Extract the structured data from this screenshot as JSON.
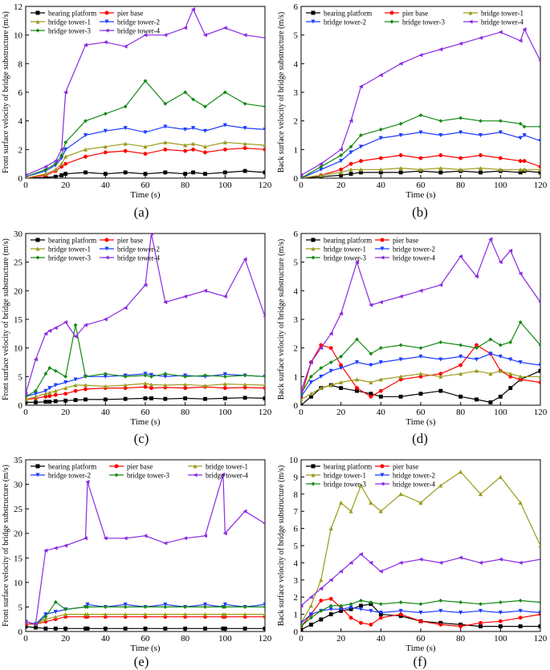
{
  "figure": {
    "captions": [
      "(a)",
      "(b)",
      "(c)",
      "(d)",
      "(e)",
      "(f)"
    ]
  },
  "series_styles": [
    {
      "name": "bearing platform",
      "color": "#000000",
      "marker": "square"
    },
    {
      "name": "pier base",
      "color": "#ff0000",
      "marker": "circle"
    },
    {
      "name": "bridge tower-1",
      "color": "#9b9b1c",
      "marker": "triangle-up"
    },
    {
      "name": "bridge tower-2",
      "color": "#1f3cff",
      "marker": "triangle-down"
    },
    {
      "name": "bridge tower-3",
      "color": "#168a16",
      "marker": "diamond"
    },
    {
      "name": "bridge tower-4",
      "color": "#8a2be2",
      "marker": "triangle-left"
    }
  ],
  "chart_data": [
    {
      "id": "a",
      "type": "line",
      "xlabel": "Time (s)",
      "ylabel": "Front surface velocity of bridge substructure (m/s)",
      "xlim": [
        0,
        120
      ],
      "ylim": [
        0,
        12
      ],
      "xticks": [
        0,
        20,
        40,
        60,
        80,
        100,
        120
      ],
      "yticks": [
        0,
        2,
        4,
        6,
        8,
        10,
        12
      ],
      "legend_order": [
        "bearing platform",
        "pier base",
        "bridge tower-1",
        "bridge tower-2",
        "bridge tower-3",
        "bridge tower-4"
      ],
      "legend_cols": 2,
      "x": [
        0,
        10,
        15,
        18,
        20,
        30,
        40,
        50,
        60,
        70,
        80,
        84,
        90,
        100,
        110,
        120
      ],
      "series": [
        {
          "name": "bearing platform",
          "values": [
            0,
            0.05,
            0.1,
            0.2,
            0.3,
            0.4,
            0.3,
            0.4,
            0.3,
            0.4,
            0.3,
            0.4,
            0.3,
            0.4,
            0.5,
            0.4
          ]
        },
        {
          "name": "pier base",
          "values": [
            0,
            0.2,
            0.5,
            0.8,
            1.0,
            1.5,
            1.8,
            1.9,
            1.7,
            2.0,
            1.9,
            2.0,
            1.8,
            2.0,
            2.1,
            2.0
          ]
        },
        {
          "name": "bridge tower-1",
          "values": [
            0,
            0.3,
            0.6,
            1.0,
            1.5,
            2.0,
            2.2,
            2.4,
            2.2,
            2.5,
            2.3,
            2.4,
            2.2,
            2.5,
            2.4,
            2.3
          ]
        },
        {
          "name": "bridge tower-2",
          "values": [
            0.1,
            0.5,
            0.9,
            1.4,
            2.0,
            3.0,
            3.3,
            3.5,
            3.2,
            3.6,
            3.4,
            3.5,
            3.3,
            3.7,
            3.5,
            3.4
          ]
        },
        {
          "name": "bridge tower-3",
          "values": [
            0.1,
            0.6,
            1.0,
            1.6,
            2.5,
            4.0,
            4.5,
            5.0,
            6.8,
            5.2,
            6.0,
            5.5,
            5.0,
            6.0,
            5.2,
            5.0
          ]
        },
        {
          "name": "bridge tower-4",
          "values": [
            0.2,
            0.8,
            1.2,
            2.0,
            6.0,
            9.3,
            9.5,
            9.2,
            10.0,
            10.0,
            10.5,
            11.8,
            10.0,
            10.5,
            10.0,
            9.8
          ]
        }
      ]
    },
    {
      "id": "b",
      "type": "line",
      "xlabel": "Time (s)",
      "ylabel": "Back surface velocity of bridge substructure (m/s)",
      "xlim": [
        0,
        120
      ],
      "ylim": [
        0,
        6
      ],
      "xticks": [
        0,
        20,
        40,
        60,
        80,
        100,
        120
      ],
      "yticks": [
        0,
        1,
        2,
        3,
        4,
        5,
        6
      ],
      "legend_order": [
        "bearing platform",
        "pier base",
        "bridge tower-1",
        "bridge tower-2",
        "bridge tower-3",
        "bridge tower-4"
      ],
      "legend_cols": 3,
      "x": [
        0,
        10,
        20,
        25,
        30,
        40,
        50,
        60,
        70,
        80,
        90,
        100,
        110,
        112,
        120
      ],
      "series": [
        {
          "name": "bearing platform",
          "values": [
            0,
            0.05,
            0.1,
            0.15,
            0.2,
            0.2,
            0.2,
            0.25,
            0.2,
            0.25,
            0.2,
            0.25,
            0.2,
            0.25,
            0.2
          ]
        },
        {
          "name": "pier base",
          "values": [
            0,
            0.1,
            0.3,
            0.5,
            0.6,
            0.7,
            0.8,
            0.7,
            0.8,
            0.7,
            0.8,
            0.7,
            0.6,
            0.6,
            0.4
          ]
        },
        {
          "name": "bridge tower-1",
          "values": [
            0,
            0.1,
            0.2,
            0.3,
            0.3,
            0.3,
            0.35,
            0.3,
            0.35,
            0.3,
            0.35,
            0.3,
            0.3,
            0.3,
            0.3
          ]
        },
        {
          "name": "bridge tower-2",
          "values": [
            0,
            0.3,
            0.6,
            0.9,
            1.1,
            1.4,
            1.5,
            1.6,
            1.5,
            1.6,
            1.5,
            1.6,
            1.4,
            1.5,
            1.3
          ]
        },
        {
          "name": "bridge tower-3",
          "values": [
            0,
            0.4,
            0.8,
            1.1,
            1.5,
            1.7,
            1.9,
            2.2,
            2.0,
            2.1,
            2.0,
            2.0,
            1.9,
            1.8,
            1.8
          ]
        },
        {
          "name": "bridge tower-4",
          "values": [
            0.1,
            0.5,
            1.0,
            2.0,
            3.2,
            3.6,
            4.0,
            4.3,
            4.5,
            4.7,
            4.9,
            5.1,
            4.8,
            5.2,
            4.1
          ]
        }
      ]
    },
    {
      "id": "c",
      "type": "line",
      "xlabel": "Time (s)",
      "ylabel": "Front surface velocity of bridge substructure (m/s)",
      "xlim": [
        0,
        120
      ],
      "ylim": [
        0,
        30
      ],
      "xticks": [
        0,
        20,
        40,
        60,
        80,
        100,
        120
      ],
      "yticks": [
        0,
        5,
        10,
        15,
        20,
        25,
        30
      ],
      "legend_order": [
        "bearing platform",
        "pier base",
        "bridge tower-1",
        "bridge tower-2",
        "bridge tower-3",
        "bridge tower-4"
      ],
      "legend_cols": 2,
      "x": [
        0,
        5,
        10,
        12,
        15,
        20,
        25,
        30,
        40,
        50,
        60,
        63,
        70,
        80,
        90,
        100,
        110,
        120
      ],
      "series": [
        {
          "name": "bearing platform",
          "values": [
            0.5,
            0.5,
            0.6,
            0.6,
            0.7,
            0.8,
            0.9,
            1.0,
            1.0,
            1.1,
            1.2,
            1.2,
            1.1,
            1.2,
            1.1,
            1.2,
            1.3,
            1.2
          ]
        },
        {
          "name": "pier base",
          "values": [
            1.0,
            1.2,
            1.5,
            1.6,
            1.8,
            2.0,
            2.5,
            2.8,
            3.0,
            3.0,
            3.2,
            3.0,
            3.1,
            3.0,
            3.2,
            3.0,
            3.1,
            3.0
          ]
        },
        {
          "name": "bridge tower-1",
          "values": [
            1.0,
            1.5,
            2.0,
            2.2,
            2.5,
            3.0,
            3.5,
            3.5,
            3.3,
            3.5,
            3.8,
            3.6,
            3.5,
            3.6,
            3.4,
            3.7,
            3.6,
            3.5
          ]
        },
        {
          "name": "bridge tower-2",
          "values": [
            1.5,
            2.0,
            2.5,
            3.0,
            3.5,
            4.0,
            4.5,
            5.0,
            5.0,
            5.2,
            5.5,
            5.3,
            5.0,
            5.2,
            5.0,
            5.4,
            5.2,
            5.0
          ]
        },
        {
          "name": "bridge tower-3",
          "values": [
            1.5,
            2.5,
            5.5,
            6.5,
            6.0,
            5.0,
            14.0,
            5.0,
            5.5,
            5.0,
            5.2,
            5.0,
            5.5,
            5.0,
            5.2,
            5.0,
            5.2,
            5.0
          ]
        },
        {
          "name": "bridge tower-4",
          "values": [
            2.0,
            8.0,
            12.5,
            13.0,
            13.5,
            14.5,
            12.0,
            14.0,
            15.0,
            17.0,
            21.0,
            30.0,
            18.0,
            19.0,
            20.0,
            19.0,
            25.5,
            15.5
          ]
        }
      ]
    },
    {
      "id": "d",
      "type": "line",
      "xlabel": "Time (s)",
      "ylabel": "Back surface velocity of bridge substructure (m/s)",
      "xlim": [
        0,
        120
      ],
      "ylim": [
        0,
        6
      ],
      "xticks": [
        0,
        20,
        40,
        60,
        80,
        100,
        120
      ],
      "yticks": [
        0,
        1,
        2,
        3,
        4,
        5,
        6
      ],
      "legend_order": [
        "bearing platform",
        "pier base",
        "bridge tower-1",
        "bridge tower-2",
        "bridge tower-3",
        "bridge tower-4"
      ],
      "legend_cols": 2,
      "x": [
        0,
        5,
        10,
        15,
        20,
        28,
        35,
        40,
        50,
        60,
        70,
        80,
        88,
        95,
        100,
        105,
        110,
        120
      ],
      "series": [
        {
          "name": "bearing platform",
          "values": [
            0,
            0.3,
            0.6,
            0.7,
            0.6,
            0.5,
            0.4,
            0.3,
            0.3,
            0.4,
            0.5,
            0.3,
            0.2,
            0.1,
            0.3,
            0.6,
            0.9,
            1.2
          ]
        },
        {
          "name": "pier base",
          "values": [
            0.3,
            1.5,
            2.1,
            2.0,
            1.4,
            0.6,
            0.3,
            0.5,
            0.9,
            1.0,
            1.1,
            1.4,
            2.1,
            1.8,
            1.2,
            1.0,
            0.9,
            0.8
          ]
        },
        {
          "name": "bridge tower-1",
          "values": [
            0.2,
            0.4,
            0.6,
            0.7,
            0.8,
            0.9,
            0.8,
            0.9,
            1.0,
            1.1,
            1.0,
            1.1,
            1.2,
            1.1,
            1.2,
            1.1,
            1.0,
            1.0
          ]
        },
        {
          "name": "bridge tower-2",
          "values": [
            0.3,
            0.8,
            1.0,
            1.2,
            1.3,
            1.5,
            1.4,
            1.5,
            1.6,
            1.7,
            1.6,
            1.7,
            1.6,
            1.8,
            1.7,
            1.6,
            1.5,
            1.4
          ]
        },
        {
          "name": "bridge tower-3",
          "values": [
            0.4,
            1.0,
            1.3,
            1.5,
            1.7,
            2.3,
            1.8,
            2.0,
            2.1,
            2.0,
            2.2,
            2.1,
            2.0,
            2.3,
            2.1,
            2.2,
            2.9,
            2.1
          ]
        },
        {
          "name": "bridge tower-4",
          "values": [
            0.5,
            1.5,
            2.0,
            2.5,
            3.2,
            5.0,
            3.5,
            3.6,
            3.8,
            4.0,
            4.2,
            5.2,
            4.5,
            5.8,
            5.0,
            5.4,
            4.6,
            3.6
          ]
        }
      ]
    },
    {
      "id": "e",
      "type": "line",
      "xlabel": "Time (s)",
      "ylabel": "Front surface velocity of bridge substructure (m/s)",
      "xlim": [
        0,
        120
      ],
      "ylim": [
        0,
        35
      ],
      "xticks": [
        0,
        20,
        40,
        60,
        80,
        100,
        120
      ],
      "yticks": [
        0,
        5,
        10,
        15,
        20,
        25,
        30,
        35
      ],
      "legend_order": [
        "bearing platform",
        "pier base",
        "bridge tower-1",
        "bridge tower-2",
        "bridge tower-3",
        "bridge tower-4"
      ],
      "legend_cols": 3,
      "x": [
        0,
        5,
        10,
        15,
        20,
        30,
        31,
        40,
        50,
        60,
        70,
        80,
        90,
        99,
        100,
        110,
        120
      ],
      "series": [
        {
          "name": "bearing platform",
          "values": [
            1.0,
            0.8,
            0.6,
            0.6,
            0.6,
            0.6,
            0.6,
            0.6,
            0.6,
            0.6,
            0.6,
            0.6,
            0.6,
            0.6,
            0.6,
            0.6,
            0.6
          ]
        },
        {
          "name": "pier base",
          "values": [
            1.5,
            1.5,
            2.0,
            2.5,
            3.0,
            3.0,
            3.0,
            3.0,
            3.0,
            3.0,
            3.0,
            3.0,
            3.0,
            3.0,
            3.0,
            3.0,
            3.0
          ]
        },
        {
          "name": "bridge tower-1",
          "values": [
            2.0,
            1.5,
            2.5,
            3.0,
            3.5,
            3.5,
            3.5,
            3.5,
            3.5,
            3.5,
            3.5,
            3.5,
            3.5,
            3.5,
            3.5,
            3.5,
            3.5
          ]
        },
        {
          "name": "bridge tower-2",
          "values": [
            2.0,
            1.5,
            3.5,
            4.0,
            4.5,
            5.0,
            5.5,
            5.0,
            5.5,
            5.0,
            5.5,
            5.0,
            5.5,
            5.0,
            5.5,
            5.0,
            5.5
          ]
        },
        {
          "name": "bridge tower-3",
          "values": [
            2.0,
            1.5,
            3.0,
            6.0,
            4.5,
            5.0,
            5.0,
            5.0,
            5.0,
            5.0,
            5.0,
            5.0,
            5.0,
            5.0,
            5.0,
            5.0,
            5.0
          ]
        },
        {
          "name": "bridge tower-4",
          "values": [
            2.0,
            1.5,
            16.5,
            17.0,
            17.5,
            19.0,
            30.5,
            19.0,
            19.0,
            19.5,
            18.0,
            19.0,
            19.5,
            32.0,
            20.0,
            24.5,
            22.0
          ]
        }
      ]
    },
    {
      "id": "f",
      "type": "line",
      "xlabel": "Time (s)",
      "ylabel": "Back surface velocity of bridge substructure (m/s)",
      "xlim": [
        0,
        120
      ],
      "ylim": [
        0,
        10
      ],
      "xticks": [
        0,
        20,
        40,
        60,
        80,
        100,
        120
      ],
      "yticks": [
        0,
        1,
        2,
        3,
        4,
        5,
        6,
        7,
        8,
        9,
        10
      ],
      "legend_order": [
        "bearing platform",
        "pier base",
        "bridge tower-1",
        "bridge tower-2",
        "bridge tower-3",
        "bridge tower-4"
      ],
      "legend_cols": 2,
      "x": [
        0,
        5,
        10,
        15,
        20,
        25,
        30,
        35,
        40,
        50,
        60,
        70,
        80,
        90,
        100,
        110,
        120
      ],
      "series": [
        {
          "name": "bearing platform",
          "values": [
            0.1,
            0.4,
            0.7,
            1.0,
            1.2,
            1.3,
            1.5,
            1.6,
            1.0,
            0.9,
            0.6,
            0.5,
            0.4,
            0.3,
            0.3,
            0.3,
            0.3
          ]
        },
        {
          "name": "pier base",
          "values": [
            0.3,
            1.0,
            1.8,
            1.9,
            1.4,
            0.8,
            0.5,
            0.4,
            0.8,
            1.0,
            0.6,
            0.4,
            0.3,
            0.5,
            0.6,
            0.8,
            1.0
          ]
        },
        {
          "name": "bridge tower-1",
          "values": [
            0.5,
            1.5,
            3.0,
            6.0,
            7.5,
            7.0,
            8.5,
            7.5,
            7.0,
            8.0,
            7.5,
            8.5,
            9.3,
            8.0,
            9.0,
            7.5,
            5.0
          ]
        },
        {
          "name": "bridge tower-2",
          "values": [
            0.5,
            1.0,
            1.2,
            1.3,
            1.3,
            1.4,
            1.3,
            1.2,
            1.1,
            1.2,
            1.1,
            1.2,
            1.1,
            1.2,
            1.1,
            1.2,
            1.1
          ]
        },
        {
          "name": "bridge tower-3",
          "values": [
            0.3,
            0.8,
            1.2,
            1.5,
            1.5,
            1.6,
            1.8,
            1.7,
            1.6,
            1.7,
            1.6,
            1.8,
            1.7,
            1.6,
            1.7,
            1.8,
            1.7
          ]
        },
        {
          "name": "bridge tower-4",
          "values": [
            1.5,
            2.0,
            2.5,
            3.0,
            3.5,
            4.0,
            4.5,
            4.0,
            3.5,
            4.0,
            4.2,
            4.0,
            4.3,
            4.0,
            4.2,
            4.0,
            4.2
          ]
        }
      ]
    }
  ]
}
